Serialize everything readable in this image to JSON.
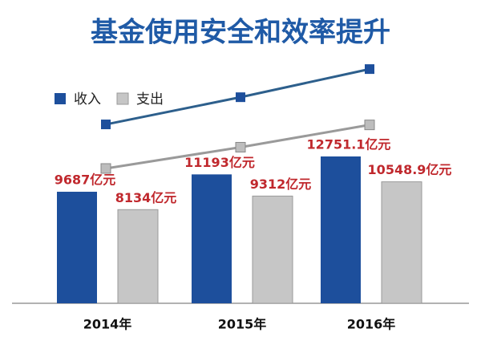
{
  "chart_data": {
    "type": "bar",
    "title": "基金使用安全和效率提升",
    "categories": [
      "2014年",
      "2015年",
      "2016年"
    ],
    "series": [
      {
        "name": "收入",
        "color": "#1d4f9c",
        "line_color": "#2d5f8c",
        "values": [
          9687,
          11193,
          12751.1
        ],
        "value_labels": [
          "9687亿元",
          "11193亿元",
          "12751.1亿元"
        ]
      },
      {
        "name": "支出",
        "color": "#c6c6c6",
        "line_color": "#9a9a9a",
        "values": [
          8134,
          9312,
          10548.9
        ],
        "value_labels": [
          "8134亿元",
          "9312亿元",
          "10548.9亿元"
        ]
      }
    ],
    "legend": "top-left",
    "label_color": "#c0282d"
  }
}
